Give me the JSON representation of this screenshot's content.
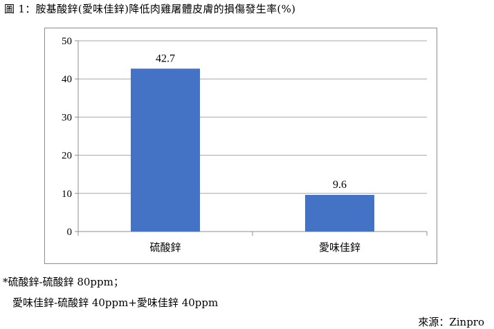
{
  "caption": "圖 1：胺基酸鋅(愛味佳鋅)降低肉雞屠體皮膚的損傷發生率(%)",
  "chart_data": {
    "type": "bar",
    "categories": [
      "硫酸鋅",
      "愛味佳鋅"
    ],
    "values": [
      42.7,
      9.6
    ],
    "value_labels": [
      "42.7",
      "9.6"
    ],
    "title": "",
    "xlabel": "",
    "ylabel": "",
    "ylim": [
      0,
      50
    ],
    "yticks": [
      0,
      10,
      20,
      30,
      40,
      50
    ],
    "grid": true,
    "bar_color": "#4472c4",
    "grid_color": "#a6a6a6"
  },
  "footnotes": {
    "line1": "*硫酸鋅-硫酸鋅 80ppm；",
    "line2": "愛味佳鋅-硫酸鋅 40ppm+愛味佳鋅 40ppm"
  },
  "source": "來源：Zinpro"
}
